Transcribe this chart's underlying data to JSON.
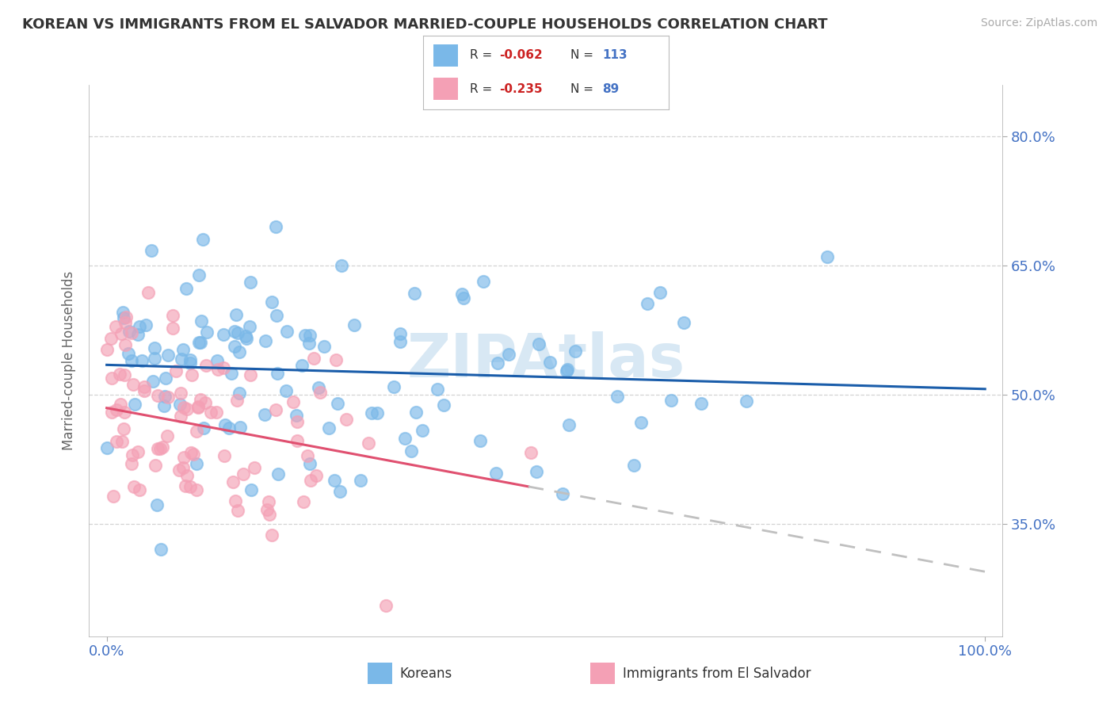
{
  "title": "KOREAN VS IMMIGRANTS FROM EL SALVADOR MARRIED-COUPLE HOUSEHOLDS CORRELATION CHART",
  "source_text": "Source: ZipAtlas.com",
  "ylabel": "Married-couple Households",
  "xlim": [
    -0.02,
    1.02
  ],
  "ylim": [
    0.22,
    0.86
  ],
  "xtick_positions": [
    0.0,
    1.0
  ],
  "xticklabels": [
    "0.0%",
    "100.0%"
  ],
  "ytick_positions": [
    0.35,
    0.5,
    0.65,
    0.8
  ],
  "yticklabels": [
    "35.0%",
    "50.0%",
    "65.0%",
    "80.0%"
  ],
  "korean_R": -0.062,
  "korean_N": 113,
  "salvador_R": -0.235,
  "salvador_N": 89,
  "korean_scatter_color": "#7ab8e8",
  "salvador_scatter_color": "#f4a0b5",
  "korean_line_color": "#1a5daa",
  "salvador_line_solid_color": "#e05070",
  "salvador_line_dashed_color": "#c0c0c0",
  "watermark_text": "ZIPAtlas",
  "watermark_color": "#d8e8f4",
  "legend_korean_label": "Koreans",
  "legend_salvador_label": "Immigrants from El Salvador",
  "background_color": "#ffffff",
  "grid_color": "#cccccc",
  "title_color": "#333333",
  "tick_color": "#4472c4",
  "axis_label_color": "#666666",
  "legend_R_color": "#cc2222",
  "legend_N_color": "#4472c4",
  "korean_line_intercept": 0.535,
  "korean_line_slope": -0.028,
  "salvador_line_intercept": 0.485,
  "salvador_line_slope": -0.19
}
